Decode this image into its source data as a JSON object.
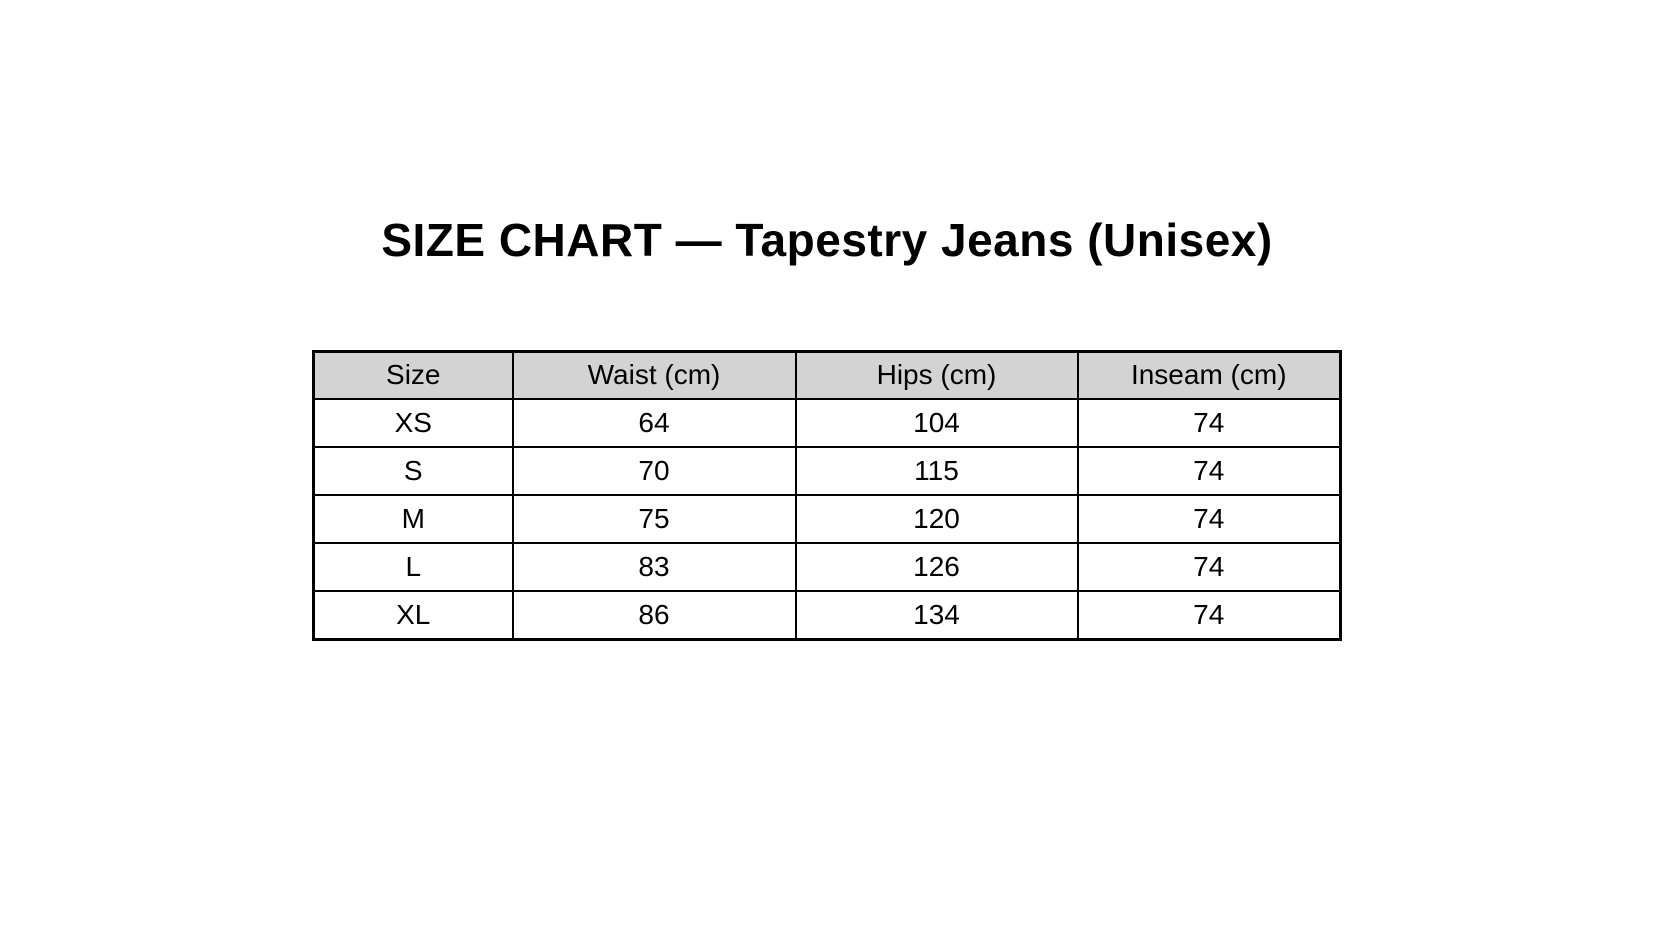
{
  "page": {
    "title": "SIZE CHART — Tapestry Jeans (Unisex)",
    "background_color": "#ffffff"
  },
  "colors": {
    "header_background": "#d3d3d3",
    "table_border": "#000000",
    "text": "#000000"
  },
  "chart_data": {
    "type": "table",
    "title": "SIZE CHART — Tapestry Jeans (Unisex)",
    "columns": [
      "Size",
      "Waist (cm)",
      "Hips (cm)",
      "Inseam (cm)"
    ],
    "rows": [
      [
        "XS",
        64,
        104,
        74
      ],
      [
        "S",
        70,
        115,
        74
      ],
      [
        "M",
        75,
        120,
        74
      ],
      [
        "L",
        83,
        126,
        74
      ],
      [
        "XL",
        86,
        134,
        74
      ]
    ],
    "layout": {
      "header_background": "#d3d3d3",
      "border_color": "#000000",
      "grid": "on",
      "alignment": "center"
    }
  }
}
